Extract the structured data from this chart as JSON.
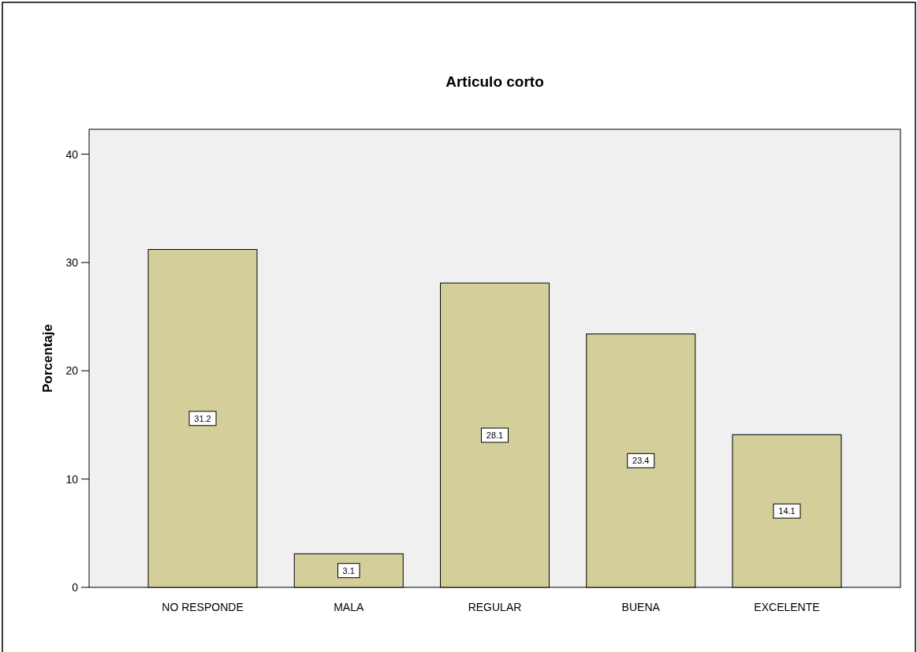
{
  "chart_data": {
    "type": "bar",
    "title": "Articulo corto",
    "ylabel": "Porcentaje",
    "categories": [
      "NO RESPONDE",
      "MALA",
      "REGULAR",
      "BUENA",
      "EXCELENTE"
    ],
    "values": [
      31.2,
      3.1,
      28.1,
      23.4,
      14.1
    ],
    "color": "#d3ce9a",
    "ylim": [
      0,
      42.3
    ],
    "yticks": [
      0,
      10,
      20,
      30,
      40
    ],
    "grid": false,
    "data_labels": true
  }
}
